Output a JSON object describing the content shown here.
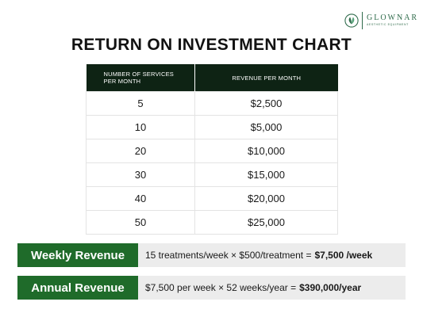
{
  "brand": {
    "name": "GLOWNAR",
    "tagline": "AESTHETIC EQUIPMENT",
    "logo_icon": "leaf-icon",
    "color": "#2f6b4b"
  },
  "title": "RETURN ON INVESTMENT CHART",
  "table": {
    "headers": [
      "NUMBER OF SERVICES PER MONTH",
      "REVENUE PER MONTH"
    ],
    "rows": [
      [
        "5",
        "$2,500"
      ],
      [
        "10",
        "$5,000"
      ],
      [
        "20",
        "$10,000"
      ],
      [
        "30",
        "$15,000"
      ],
      [
        "40",
        "$20,000"
      ],
      [
        "50",
        "$25,000"
      ]
    ],
    "header_bg": "#0e2314"
  },
  "weekly": {
    "label": "Weekly Revenue",
    "formula": "15 treatments/week × $500/treatment =",
    "result": "$7,500 /week"
  },
  "annual": {
    "label": "Annual Revenue",
    "formula": "$7,500 per week × 52 weeks/year =",
    "result": "$390,000/year"
  },
  "colors": {
    "accent_green": "#1f6b2a",
    "value_bg": "#ececec"
  }
}
